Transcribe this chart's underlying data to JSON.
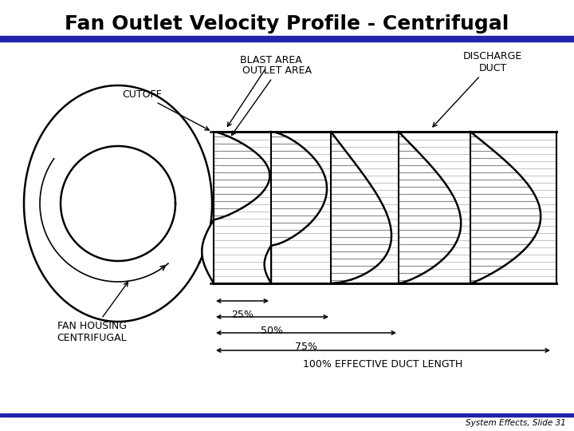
{
  "title": "Fan Outlet Velocity Profile - Centrifugal",
  "subtitle": "System Effects, Slide 31",
  "title_fontsize": 18,
  "fan_housing_label": [
    "FAN HOUSING",
    "CENTRIFUGAL"
  ],
  "cutoff_label": "CUTOFF",
  "blast_area_label": "BLAST AREA",
  "outlet_area_label": "OUTLET AREA",
  "discharge_duct_label": [
    "DISCHARGE",
    "DUCT"
  ],
  "pct_25": "25%",
  "pct_50": "50%",
  "pct_75": "75%",
  "pct_100": "100% EFFECTIVE DUCT LENGTH",
  "blue_color": "#2222aa",
  "black": "#000000",
  "gray_hatch": "#aaaaaa"
}
